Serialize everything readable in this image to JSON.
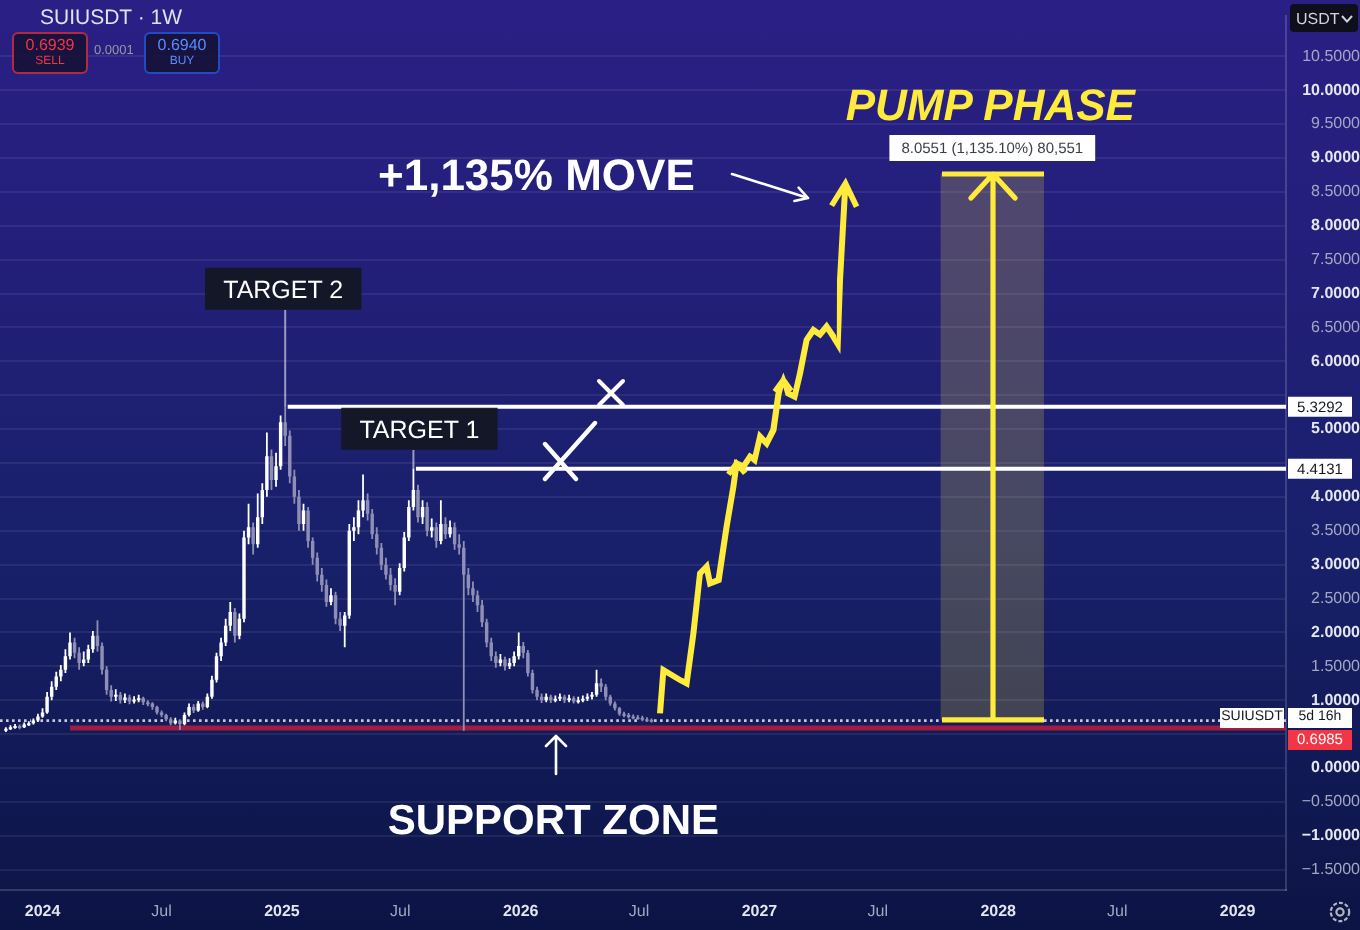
{
  "chart_data": {
    "type": "candlestick",
    "title": "SUIUSDT · 1W",
    "ylabel": "USDT",
    "annotations": [
      "0.6939",
      "SELL",
      "0.0001",
      "0.6940",
      "BUY",
      {
        "text": "TARGET 2",
        "x": "2025-01-06",
        "y": 5.3292
      },
      {
        "text": "TARGET 1",
        "x": "2025-07-21",
        "y": 4.4131
      },
      "+1,135% MOVE",
      {
        "text": "PUMP PHASE",
        "x": "2027-12-23",
        "y": 8.7647
      },
      {
        "text": "SUPPORT ZONE",
        "x": "2026-02-23",
        "y": 0.59
      },
      "SUIUSDT",
      "5d 16h",
      "0.6985"
    ],
    "x": [
      "2023-11-06",
      "2023-11-13",
      "2023-11-20",
      "2023-11-27",
      "2023-12-04",
      "2023-12-11",
      "2023-12-18",
      "2023-12-25",
      "2024-01-01",
      "2024-01-08",
      "2024-01-15",
      "2024-01-22",
      "2024-01-29",
      "2024-02-05",
      "2024-02-12",
      "2024-02-19",
      "2024-02-26",
      "2024-03-04",
      "2024-03-11",
      "2024-03-18",
      "2024-03-25",
      "2024-04-01",
      "2024-04-08",
      "2024-04-15",
      "2024-04-22",
      "2024-04-29",
      "2024-05-06",
      "2024-05-13",
      "2024-05-20",
      "2024-05-27",
      "2024-06-03",
      "2024-06-10",
      "2024-06-17",
      "2024-06-24",
      "2024-07-01",
      "2024-07-08",
      "2024-07-15",
      "2024-07-22",
      "2024-07-29",
      "2024-08-05",
      "2024-08-12",
      "2024-08-19",
      "2024-08-26",
      "2024-09-02",
      "2024-09-09",
      "2024-09-16",
      "2024-09-23",
      "2024-09-30",
      "2024-10-07",
      "2024-10-14",
      "2024-10-21",
      "2024-10-28",
      "2024-11-04",
      "2024-11-11",
      "2024-11-18",
      "2024-11-25",
      "2024-12-02",
      "2024-12-09",
      "2024-12-16",
      "2024-12-23",
      "2024-12-30",
      "2025-01-06",
      "2025-01-13",
      "2025-01-20",
      "2025-01-27",
      "2025-02-03",
      "2025-02-10",
      "2025-02-17",
      "2025-02-24",
      "2025-03-03",
      "2025-03-10",
      "2025-03-17",
      "2025-03-24",
      "2025-03-31",
      "2025-04-07",
      "2025-04-14",
      "2025-04-21",
      "2025-04-28",
      "2025-05-05",
      "2025-05-12",
      "2025-05-19",
      "2025-05-26",
      "2025-06-02",
      "2025-06-09",
      "2025-06-16",
      "2025-06-23",
      "2025-06-30",
      "2025-07-07",
      "2025-07-14",
      "2025-07-21",
      "2025-07-28",
      "2025-08-04",
      "2025-08-11",
      "2025-08-18",
      "2025-08-25",
      "2025-09-01",
      "2025-09-08",
      "2025-09-15",
      "2025-09-22",
      "2025-09-29",
      "2025-10-06",
      "2025-10-13",
      "2025-10-20",
      "2025-10-27",
      "2025-11-03",
      "2025-11-10",
      "2025-11-17",
      "2025-11-24",
      "2025-12-01",
      "2025-12-08",
      "2025-12-15",
      "2025-12-22",
      "2025-12-29",
      "2026-01-05",
      "2026-01-12",
      "2026-01-19",
      "2026-01-26",
      "2026-02-02",
      "2026-02-09",
      "2026-02-16",
      "2026-02-23",
      "2026-03-02",
      "2026-03-09",
      "2026-03-16",
      "2026-03-23",
      "2026-03-30",
      "2026-04-06",
      "2026-04-13",
      "2026-04-20",
      "2026-04-27",
      "2026-05-04",
      "2026-05-11",
      "2026-05-18",
      "2026-05-25",
      "2026-06-01",
      "2026-06-08",
      "2026-06-15",
      "2026-06-22",
      "2026-06-29",
      "2026-07-06",
      "2026-07-13",
      "2026-07-20"
    ],
    "ohlc": [
      [
        0.55,
        0.6,
        0.53,
        0.58
      ],
      [
        0.58,
        0.63,
        0.56,
        0.6
      ],
      [
        0.6,
        0.65,
        0.58,
        0.62
      ],
      [
        0.62,
        0.64,
        0.57,
        0.6
      ],
      [
        0.6,
        0.67,
        0.59,
        0.64
      ],
      [
        0.64,
        0.69,
        0.62,
        0.66
      ],
      [
        0.66,
        0.73,
        0.64,
        0.7
      ],
      [
        0.7,
        0.8,
        0.68,
        0.76
      ],
      [
        0.76,
        0.88,
        0.74,
        0.82
      ],
      [
        0.82,
        1.12,
        0.8,
        1.05
      ],
      [
        1.05,
        1.28,
        1.0,
        1.2
      ],
      [
        1.2,
        1.42,
        1.15,
        1.35
      ],
      [
        1.35,
        1.52,
        1.28,
        1.45
      ],
      [
        1.45,
        1.75,
        1.4,
        1.65
      ],
      [
        1.65,
        2.0,
        1.6,
        1.85
      ],
      [
        1.85,
        1.92,
        1.62,
        1.7
      ],
      [
        1.7,
        1.78,
        1.45,
        1.55
      ],
      [
        1.55,
        1.72,
        1.5,
        1.6
      ],
      [
        1.6,
        1.82,
        1.55,
        1.75
      ],
      [
        1.75,
        2.02,
        1.7,
        1.95
      ],
      [
        1.95,
        2.18,
        1.72,
        1.8
      ],
      [
        1.8,
        1.85,
        1.38,
        1.45
      ],
      [
        1.45,
        1.5,
        1.08,
        1.15
      ],
      [
        1.15,
        1.22,
        0.98,
        1.05
      ],
      [
        1.05,
        1.16,
        0.99,
        1.08
      ],
      [
        1.08,
        1.12,
        0.95,
        1.0
      ],
      [
        1.0,
        1.1,
        0.96,
        1.04
      ],
      [
        1.04,
        1.08,
        0.94,
        0.98
      ],
      [
        0.98,
        1.06,
        0.95,
        1.01
      ],
      [
        1.01,
        1.08,
        0.97,
        1.03
      ],
      [
        1.03,
        1.05,
        0.93,
        0.97
      ],
      [
        0.97,
        1.0,
        0.91,
        0.95
      ],
      [
        0.95,
        0.97,
        0.86,
        0.9
      ],
      [
        0.9,
        0.92,
        0.79,
        0.82
      ],
      [
        0.82,
        0.85,
        0.75,
        0.78
      ],
      [
        0.78,
        0.8,
        0.69,
        0.72
      ],
      [
        0.72,
        0.75,
        0.63,
        0.66
      ],
      [
        0.66,
        0.74,
        0.64,
        0.7
      ],
      [
        0.7,
        0.72,
        0.56,
        0.65
      ],
      [
        0.65,
        0.82,
        0.63,
        0.78
      ],
      [
        0.78,
        0.95,
        0.76,
        0.9
      ],
      [
        0.9,
        0.94,
        0.81,
        0.85
      ],
      [
        0.85,
        0.99,
        0.83,
        0.95
      ],
      [
        0.95,
        0.98,
        0.86,
        0.9
      ],
      [
        0.9,
        1.1,
        0.88,
        1.05
      ],
      [
        1.05,
        1.36,
        1.02,
        1.3
      ],
      [
        1.3,
        1.7,
        1.26,
        1.65
      ],
      [
        1.65,
        1.92,
        1.58,
        1.85
      ],
      [
        1.85,
        2.2,
        1.8,
        2.1
      ],
      [
        2.1,
        2.45,
        2.02,
        2.3
      ],
      [
        2.3,
        2.36,
        1.85,
        1.95
      ],
      [
        1.95,
        2.28,
        1.9,
        2.2
      ],
      [
        2.2,
        3.5,
        2.15,
        3.4
      ],
      [
        3.4,
        3.9,
        3.3,
        3.55
      ],
      [
        3.55,
        3.62,
        3.15,
        3.3
      ],
      [
        3.3,
        4.05,
        3.25,
        3.7
      ],
      [
        3.7,
        4.2,
        3.6,
        4.1
      ],
      [
        4.1,
        4.95,
        4.0,
        4.6
      ],
      [
        4.6,
        4.7,
        4.1,
        4.25
      ],
      [
        4.25,
        4.65,
        4.15,
        4.45
      ],
      [
        4.45,
        5.2,
        4.4,
        5.1
      ],
      [
        5.1,
        5.3292,
        4.75,
        4.9
      ],
      [
        4.9,
        4.98,
        4.2,
        4.3
      ],
      [
        4.3,
        4.4,
        3.9,
        4.0
      ],
      [
        4.0,
        4.1,
        3.5,
        3.6
      ],
      [
        3.6,
        3.9,
        3.5,
        3.8
      ],
      [
        3.8,
        3.85,
        3.25,
        3.35
      ],
      [
        3.35,
        3.4,
        3.0,
        3.1
      ],
      [
        3.1,
        3.18,
        2.75,
        2.85
      ],
      [
        2.85,
        2.95,
        2.6,
        2.7
      ],
      [
        2.7,
        2.78,
        2.38,
        2.45
      ],
      [
        2.45,
        2.65,
        2.4,
        2.55
      ],
      [
        2.55,
        2.6,
        2.12,
        2.2
      ],
      [
        2.2,
        2.3,
        2.02,
        2.1
      ],
      [
        2.1,
        2.3,
        1.78,
        2.25
      ],
      [
        2.25,
        3.6,
        2.2,
        3.5
      ],
      [
        3.5,
        3.7,
        3.35,
        3.55
      ],
      [
        3.55,
        3.95,
        3.45,
        3.8
      ],
      [
        3.8,
        4.33,
        3.7,
        3.95
      ],
      [
        3.95,
        4.05,
        3.65,
        3.75
      ],
      [
        3.75,
        3.82,
        3.38,
        3.45
      ],
      [
        3.45,
        3.55,
        3.15,
        3.25
      ],
      [
        3.25,
        3.32,
        2.92,
        3.0
      ],
      [
        3.0,
        3.1,
        2.78,
        2.85
      ],
      [
        2.85,
        2.95,
        2.62,
        2.7
      ],
      [
        2.7,
        2.8,
        2.4,
        2.6
      ],
      [
        2.6,
        3.02,
        2.55,
        2.95
      ],
      [
        2.95,
        3.48,
        2.9,
        3.4
      ],
      [
        3.4,
        3.95,
        3.35,
        3.85
      ],
      [
        3.85,
        4.4131,
        3.8,
        4.1
      ],
      [
        4.1,
        4.18,
        3.62,
        3.7
      ],
      [
        3.7,
        3.95,
        3.6,
        3.85
      ],
      [
        3.85,
        3.92,
        3.42,
        3.5
      ],
      [
        3.5,
        3.68,
        3.4,
        3.55
      ],
      [
        3.55,
        3.62,
        3.25,
        3.35
      ],
      [
        3.35,
        3.95,
        3.3,
        3.6
      ],
      [
        3.6,
        3.7,
        3.38,
        3.45
      ],
      [
        3.45,
        3.65,
        3.4,
        3.55
      ],
      [
        3.55,
        3.62,
        3.22,
        3.3
      ],
      [
        3.3,
        3.45,
        3.15,
        3.25
      ],
      [
        3.25,
        3.35,
        0.55,
        2.85
      ],
      [
        2.85,
        2.95,
        2.55,
        2.65
      ],
      [
        2.65,
        2.75,
        2.45,
        2.55
      ],
      [
        2.55,
        2.62,
        2.3,
        2.4
      ],
      [
        2.4,
        2.48,
        2.08,
        2.15
      ],
      [
        2.15,
        2.2,
        1.78,
        1.85
      ],
      [
        1.85,
        1.92,
        1.58,
        1.65
      ],
      [
        1.65,
        1.72,
        1.48,
        1.55
      ],
      [
        1.55,
        1.68,
        1.5,
        1.6
      ],
      [
        1.6,
        1.64,
        1.44,
        1.5
      ],
      [
        1.5,
        1.62,
        1.46,
        1.55
      ],
      [
        1.55,
        1.72,
        1.5,
        1.65
      ],
      [
        1.65,
        2.0,
        1.6,
        1.8
      ],
      [
        1.8,
        1.86,
        1.62,
        1.7
      ],
      [
        1.7,
        1.74,
        1.35,
        1.4
      ],
      [
        1.4,
        1.45,
        1.1,
        1.15
      ],
      [
        1.15,
        1.2,
        1.0,
        1.05
      ],
      [
        1.05,
        1.1,
        0.96,
        1.0
      ],
      [
        1.0,
        1.1,
        0.97,
        1.05
      ],
      [
        1.05,
        1.08,
        0.96,
        1.0
      ],
      [
        1.0,
        1.07,
        0.97,
        1.02
      ],
      [
        1.02,
        1.1,
        0.99,
        1.05
      ],
      [
        1.05,
        1.08,
        0.96,
        1.0
      ],
      [
        1.0,
        1.08,
        0.97,
        1.03
      ],
      [
        1.03,
        1.06,
        0.95,
        0.98
      ],
      [
        0.98,
        1.05,
        0.95,
        1.0
      ],
      [
        1.0,
        1.07,
        0.97,
        1.02
      ],
      [
        1.02,
        1.1,
        0.99,
        1.05
      ],
      [
        1.05,
        1.12,
        1.01,
        1.08
      ],
      [
        1.08,
        1.45,
        1.05,
        1.25
      ],
      [
        1.25,
        1.32,
        1.12,
        1.2
      ],
      [
        1.2,
        1.24,
        1.0,
        1.05
      ],
      [
        1.05,
        1.08,
        0.92,
        0.95
      ],
      [
        0.95,
        0.98,
        0.85,
        0.88
      ],
      [
        0.88,
        0.9,
        0.77,
        0.8
      ],
      [
        0.8,
        0.83,
        0.75,
        0.78
      ],
      [
        0.78,
        0.81,
        0.73,
        0.76
      ],
      [
        0.76,
        0.79,
        0.72,
        0.75
      ],
      [
        0.75,
        0.78,
        0.71,
        0.74
      ],
      [
        0.74,
        0.77,
        0.69,
        0.72
      ],
      [
        0.72,
        0.75,
        0.68,
        0.71
      ],
      [
        0.71,
        0.73,
        0.67,
        0.6985
      ]
    ],
    "colors": [
      "#ffffff",
      "#ffffff",
      "#ffffff",
      "#8f8fb6",
      "#ffffff",
      "#ffffff",
      "#ffffff",
      "#ffffff",
      "#ffffff",
      "#ffffff",
      "#ffffff",
      "#ffffff",
      "#ffffff",
      "#ffffff",
      "#ffffff",
      "#8f8fb6",
      "#8f8fb6",
      "#ffffff",
      "#ffffff",
      "#ffffff",
      "#8f8fb6",
      "#8f8fb6",
      "#8f8fb6",
      "#8f8fb6",
      "#ffffff",
      "#8f8fb6",
      "#ffffff",
      "#8f8fb6",
      "#ffffff",
      "#ffffff",
      "#8f8fb6",
      "#8f8fb6",
      "#8f8fb6",
      "#8f8fb6",
      "#8f8fb6",
      "#8f8fb6",
      "#8f8fb6",
      "#ffffff",
      "#8f8fb6",
      "#ffffff",
      "#ffffff",
      "#8f8fb6",
      "#ffffff",
      "#8f8fb6",
      "#ffffff",
      "#ffffff",
      "#ffffff",
      "#ffffff",
      "#ffffff",
      "#ffffff",
      "#8f8fb6",
      "#ffffff",
      "#ffffff",
      "#ffffff",
      "#8f8fb6",
      "#ffffff",
      "#ffffff",
      "#ffffff",
      "#8f8fb6",
      "#ffffff",
      "#ffffff",
      "#8f8fb6",
      "#8f8fb6",
      "#8f8fb6",
      "#8f8fb6",
      "#ffffff",
      "#8f8fb6",
      "#8f8fb6",
      "#8f8fb6",
      "#8f8fb6",
      "#8f8fb6",
      "#ffffff",
      "#8f8fb6",
      "#8f8fb6",
      "#ffffff",
      "#ffffff",
      "#ffffff",
      "#ffffff",
      "#ffffff",
      "#8f8fb6",
      "#8f8fb6",
      "#8f8fb6",
      "#8f8fb6",
      "#8f8fb6",
      "#8f8fb6",
      "#8f8fb6",
      "#ffffff",
      "#ffffff",
      "#ffffff",
      "#ffffff",
      "#8f8fb6",
      "#ffffff",
      "#8f8fb6",
      "#ffffff",
      "#8f8fb6",
      "#ffffff",
      "#8f8fb6",
      "#ffffff",
      "#8f8fb6",
      "#8f8fb6",
      "#8f8fb6",
      "#8f8fb6",
      "#8f8fb6",
      "#8f8fb6",
      "#8f8fb6",
      "#8f8fb6",
      "#8f8fb6",
      "#8f8fb6",
      "#ffffff",
      "#8f8fb6",
      "#ffffff",
      "#ffffff",
      "#ffffff",
      "#8f8fb6",
      "#8f8fb6",
      "#8f8fb6",
      "#8f8fb6",
      "#8f8fb6",
      "#ffffff",
      "#8f8fb6",
      "#ffffff",
      "#ffffff",
      "#8f8fb6",
      "#ffffff",
      "#8f8fb6",
      "#ffffff",
      "#ffffff",
      "#ffffff",
      "#ffffff",
      "#ffffff",
      "#8f8fb6",
      "#8f8fb6",
      "#8f8fb6",
      "#8f8fb6",
      "#8f8fb6",
      "#8f8fb6",
      "#8f8fb6",
      "#8f8fb6",
      "#8f8fb6",
      "#8f8fb6",
      "#8f8fb6",
      "#8f8fb6"
    ],
    "series": [
      {
        "type": "line",
        "color": "#a01c40",
        "x": [
          "2024-02-12",
          "2029-03-16"
        ],
        "values": [
          0.59,
          0.59
        ]
      },
      {
        "type": "bar",
        "color": "#ffeb3b",
        "x": [
          "2027-12-23"
        ],
        "base": [
          0.7096
        ],
        "values": [
          8.0551
        ],
        "value_labels": [
          "8.0551 (1,135.10%) 80,551"
        ]
      }
    ],
    "xlim": [
      "2023-10-28",
      "2029-03-16"
    ],
    "xticks": [
      {
        "value": "2024-01-01",
        "label": "2024"
      },
      {
        "value": "2024-07-01",
        "label": "Jul"
      },
      {
        "value": "2025-01-01",
        "label": "2025"
      },
      {
        "value": "2025-07-01",
        "label": "Jul"
      },
      {
        "value": "2026-01-01",
        "label": "2026"
      },
      {
        "value": "2026-07-01",
        "label": "Jul"
      },
      {
        "value": "2027-01-01",
        "label": "2027"
      },
      {
        "value": "2027-07-01",
        "label": "Jul"
      },
      {
        "value": "2028-01-01",
        "label": "2028"
      },
      {
        "value": "2028-07-01",
        "label": "Jul"
      },
      {
        "value": "2029-01-01",
        "label": "2029"
      }
    ],
    "ylim": [
      -1.8,
      11.1
    ],
    "yticks": [
      {
        "value": -1.5,
        "label": "−1.5000"
      },
      {
        "value": -1,
        "label": "−1.0000"
      },
      {
        "value": -0.5,
        "label": "−0.5000"
      },
      {
        "value": 0,
        "label": "0.0000"
      },
      {
        "value": 0.5,
        "label": null
      },
      {
        "value": 1,
        "label": "1.0000"
      },
      {
        "value": 1.5,
        "label": "1.5000"
      },
      {
        "value": 2,
        "label": "2.0000"
      },
      {
        "value": 2.5,
        "label": "2.5000"
      },
      {
        "value": 3,
        "label": "3.0000"
      },
      {
        "value": 3.5,
        "label": "3.5000"
      },
      {
        "value": 4,
        "label": "4.0000"
      },
      {
        "value": 4.5,
        "label": null
      },
      {
        "value": 5,
        "label": "5.0000"
      },
      {
        "value": 5.5,
        "label": null
      },
      {
        "value": 6,
        "label": "6.0000"
      },
      {
        "value": 6.5,
        "label": "6.5000"
      },
      {
        "value": 7,
        "label": "7.0000"
      },
      {
        "value": 7.5,
        "label": "7.5000"
      },
      {
        "value": 8,
        "label": "8.0000"
      },
      {
        "value": 8.5,
        "label": "8.5000"
      },
      {
        "value": 9,
        "label": "9.0000"
      },
      {
        "value": 9.5,
        "label": "9.5000"
      },
      {
        "value": 10,
        "label": "10.0000"
      },
      {
        "value": 10.5,
        "label": "10.5000"
      }
    ],
    "grid": "y",
    "ref_lines": [
      {
        "axis": "y",
        "value": 5.3292,
        "label": "5.3292",
        "color": "#ffffff"
      },
      {
        "axis": "y",
        "value": 4.4131,
        "label": "4.4131",
        "color": "#ffffff"
      },
      {
        "axis": "y",
        "value": 0.6985,
        "color": "#c8cad8",
        "line_style": "dotted"
      }
    ]
  }
}
